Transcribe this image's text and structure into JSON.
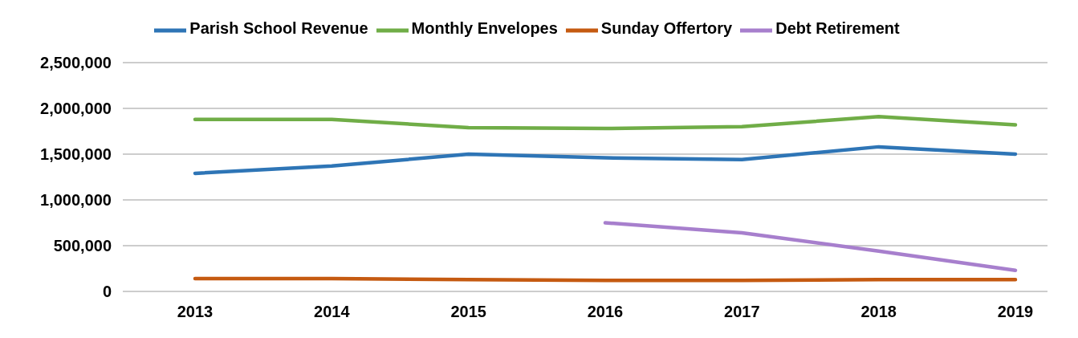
{
  "chart_data": {
    "type": "line",
    "categories": [
      "2013",
      "2014",
      "2015",
      "2016",
      "2017",
      "2018",
      "2019"
    ],
    "series": [
      {
        "name": "Parish School Revenue",
        "color": "#2e75b6",
        "values": [
          1290000,
          1370000,
          1500000,
          1460000,
          1440000,
          1580000,
          1500000
        ]
      },
      {
        "name": "Monthly Envelopes",
        "color": "#70ad47",
        "values": [
          1880000,
          1880000,
          1790000,
          1780000,
          1800000,
          1910000,
          1820000
        ]
      },
      {
        "name": "Sunday Offertory",
        "color": "#c55a11",
        "values": [
          140000,
          140000,
          130000,
          120000,
          120000,
          130000,
          130000
        ]
      },
      {
        "name": "Debt Retirement",
        "color": "#a77fcd",
        "values": [
          null,
          null,
          null,
          750000,
          640000,
          440000,
          230000
        ]
      }
    ],
    "ylim": [
      0,
      2500000
    ],
    "yticks": [
      {
        "value": 0,
        "label": "0"
      },
      {
        "value": 500000,
        "label": "500,000"
      },
      {
        "value": 1000000,
        "label": "1,000,000"
      },
      {
        "value": 1500000,
        "label": "1,500,000"
      },
      {
        "value": 2000000,
        "label": "2,000,000"
      },
      {
        "value": 2500000,
        "label": "2,500,000"
      }
    ],
    "grid": "y",
    "legend": "top",
    "marker": "none",
    "line_style": "solid"
  }
}
